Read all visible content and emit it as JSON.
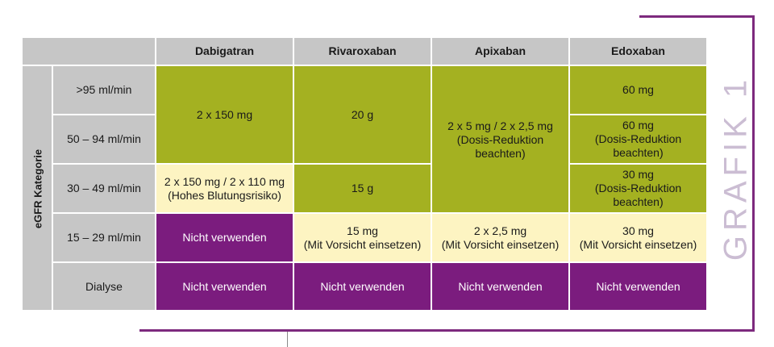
{
  "side_label": "GRAFIK 1",
  "table": {
    "headers": [
      "Dabigatran",
      "Rivaroxaban",
      "Apixaban",
      "Edoxaban"
    ],
    "row_group_label": "eGFR Kategorie",
    "row_labels": [
      ">95 ml/min",
      "50 – 94 ml/min",
      "30 – 49 ml/min",
      "15 – 29 ml/min",
      "Dialyse"
    ],
    "cells": {
      "dabigatran_95_49": "2 x 150 mg",
      "dabigatran_30_49": "2 x 150 mg / 2 x 110 mg\n(Hohes Blutungsrisiko)",
      "dabigatran_15_29": "Nicht verwenden",
      "dabigatran_dialyse": "Nicht verwenden",
      "rivaroxaban_95_50": "20 g",
      "rivaroxaban_30_49": "15 g",
      "rivaroxaban_15_29": "15 mg\n(Mit Vorsicht einsetzen)",
      "rivaroxaban_dialyse": "Nicht verwenden",
      "apixaban_95_30": "2 x 5 mg / 2 x 2,5 mg\n(Dosis-Reduktion\nbeachten)",
      "apixaban_15_29": "2 x 2,5 mg\n(Mit Vorsicht einsetzen)",
      "apixaban_dialyse": "Nicht verwenden",
      "edoxaban_95": "60 mg",
      "edoxaban_50_94": "60 mg\n(Dosis-Reduktion\nbeachten)",
      "edoxaban_30_49": "30 mg\n(Dosis-Reduktion\nbeachten)",
      "edoxaban_15_29": "30 mg\n(Mit Vorsicht einsetzen)",
      "edoxaban_dialyse": "Nicht verwenden"
    }
  },
  "colors": {
    "green": "#a4b121",
    "yellow": "#fdf4c2",
    "purple": "#7b1c7e",
    "gray": "#c6c6c6",
    "frame": "#7d2a7e"
  }
}
